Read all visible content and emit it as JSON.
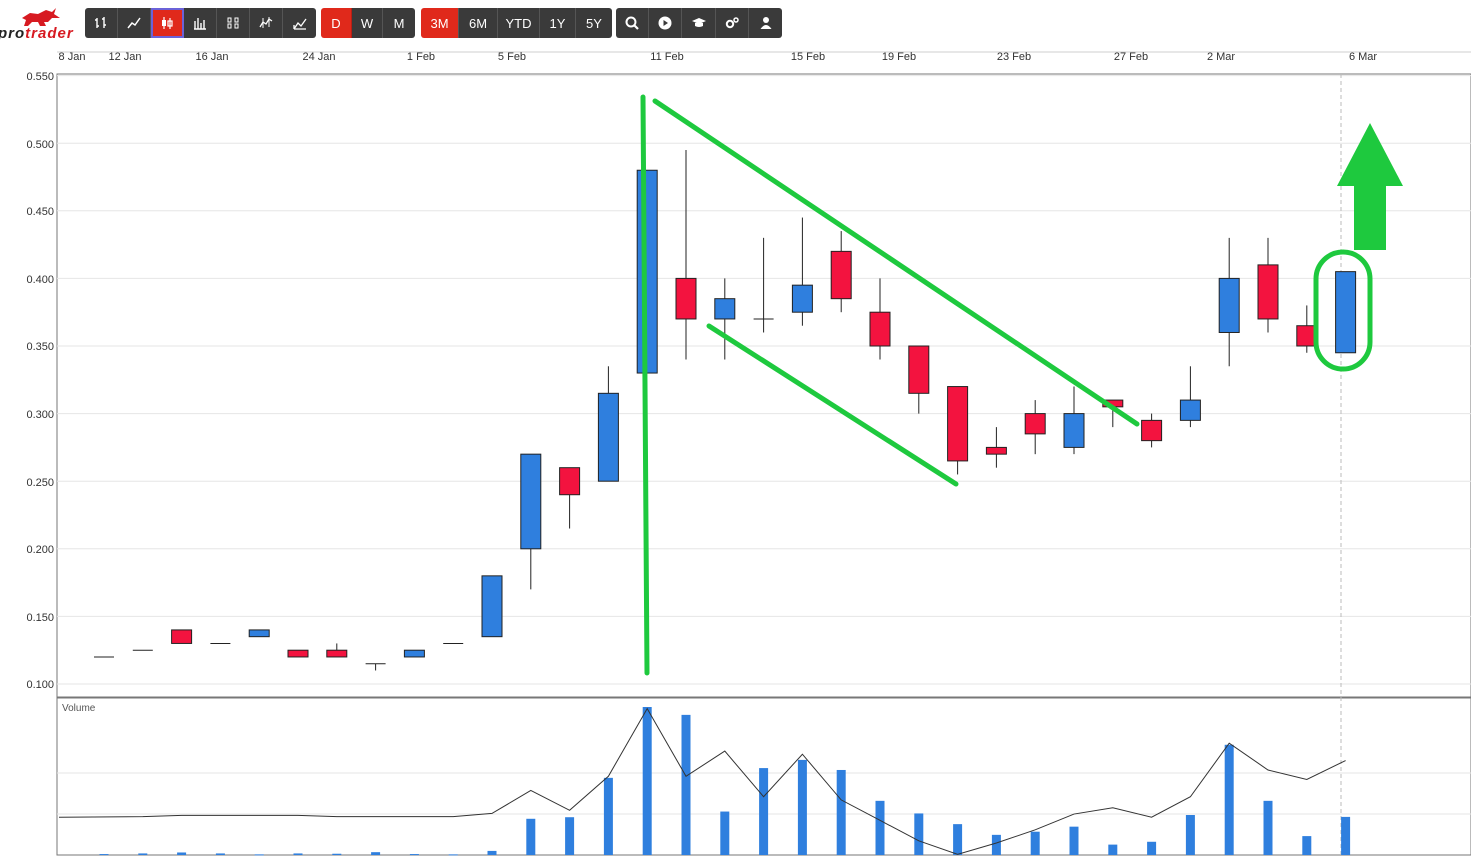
{
  "brand": {
    "logo_text_prefix": "pro",
    "logo_text_accent": "trader",
    "logo_icon": "bull-icon"
  },
  "toolbar": {
    "chart_types": [
      {
        "name": "ohlc-icon",
        "active": false
      },
      {
        "name": "line-chart-icon",
        "active": false
      },
      {
        "name": "candlestick-icon",
        "active": true
      },
      {
        "name": "bar-chart-icon",
        "active": false
      },
      {
        "name": "heikin-ashi-icon",
        "active": false
      },
      {
        "name": "step-line-icon",
        "active": false
      },
      {
        "name": "mountain-chart-icon",
        "active": false
      }
    ],
    "intervals": [
      "D",
      "W",
      "M"
    ],
    "ranges": [
      "3M",
      "6M",
      "YTD",
      "1Y",
      "5Y"
    ],
    "tools": [
      "search-icon",
      "play-icon",
      "graduation-cap-icon",
      "settings-icon",
      "user-icon"
    ]
  },
  "colors": {
    "up": "#2f7fde",
    "down": "#f3133f",
    "annotation": "#1ec93e",
    "toolbar_dark": "#3a3a3a",
    "toolbar_red": "#e0291b"
  },
  "chart_data": {
    "type": "candlestick",
    "x_tick_labels": [
      "8 Jan",
      "12 Jan",
      "16 Jan",
      "24 Jan",
      "1 Feb",
      "5 Feb",
      "11 Feb",
      "15 Feb",
      "19 Feb",
      "23 Feb",
      "27 Feb",
      "2 Mar",
      "6 Mar"
    ],
    "y_ticks": [
      "0.550",
      "0.500",
      "0.450",
      "0.400",
      "0.350",
      "0.300",
      "0.250",
      "0.200",
      "0.150",
      "0.100"
    ],
    "ylim": [
      0.09,
      0.555
    ],
    "volume_label": "Volume",
    "grid": true,
    "candles": [
      {
        "o": 0.12,
        "h": 0.12,
        "l": 0.12,
        "c": 0.12,
        "v": 0.3
      },
      {
        "o": 0.125,
        "h": 0.125,
        "l": 0.125,
        "c": 0.125,
        "v": 0.5
      },
      {
        "o": 0.14,
        "h": 0.14,
        "l": 0.13,
        "c": 0.13,
        "v": 0.8
      },
      {
        "o": 0.13,
        "h": 0.13,
        "l": 0.13,
        "c": 0.13,
        "v": 0.5
      },
      {
        "o": 0.135,
        "h": 0.14,
        "l": 0.135,
        "c": 0.14,
        "v": 0.2
      },
      {
        "o": 0.125,
        "h": 0.125,
        "l": 0.12,
        "c": 0.12,
        "v": 0.5
      },
      {
        "o": 0.125,
        "h": 0.13,
        "l": 0.12,
        "c": 0.12,
        "v": 0.4
      },
      {
        "o": 0.115,
        "h": 0.115,
        "l": 0.11,
        "c": 0.115,
        "v": 0.9
      },
      {
        "o": 0.12,
        "h": 0.125,
        "l": 0.12,
        "c": 0.125,
        "v": 0.3
      },
      {
        "o": 0.13,
        "h": 0.13,
        "l": 0.13,
        "c": 0.13,
        "v": 0.2
      },
      {
        "o": 0.135,
        "h": 0.18,
        "l": 0.135,
        "c": 0.18,
        "v": 1.3
      },
      {
        "o": 0.2,
        "h": 0.27,
        "l": 0.17,
        "c": 0.27,
        "v": 11.5
      },
      {
        "o": 0.26,
        "h": 0.26,
        "l": 0.215,
        "c": 0.24,
        "v": 12.0
      },
      {
        "o": 0.25,
        "h": 0.335,
        "l": 0.25,
        "c": 0.315,
        "v": 24.5
      },
      {
        "o": 0.33,
        "h": 0.48,
        "l": 0.33,
        "c": 0.48,
        "v": 47.0
      },
      {
        "o": 0.4,
        "h": 0.495,
        "l": 0.34,
        "c": 0.37,
        "v": 44.5
      },
      {
        "o": 0.37,
        "h": 0.4,
        "l": 0.34,
        "c": 0.385,
        "v": 13.8
      },
      {
        "o": 0.37,
        "h": 0.43,
        "l": 0.36,
        "c": 0.37,
        "v": 27.6
      },
      {
        "o": 0.375,
        "h": 0.445,
        "l": 0.365,
        "c": 0.395,
        "v": 30.2
      },
      {
        "o": 0.42,
        "h": 0.435,
        "l": 0.375,
        "c": 0.385,
        "v": 27.0
      },
      {
        "o": 0.375,
        "h": 0.4,
        "l": 0.34,
        "c": 0.35,
        "v": 17.2
      },
      {
        "o": 0.35,
        "h": 0.35,
        "l": 0.3,
        "c": 0.315,
        "v": 13.2
      },
      {
        "o": 0.32,
        "h": 0.32,
        "l": 0.255,
        "c": 0.265,
        "v": 9.8
      },
      {
        "o": 0.275,
        "h": 0.29,
        "l": 0.26,
        "c": 0.27,
        "v": 6.4
      },
      {
        "o": 0.3,
        "h": 0.31,
        "l": 0.27,
        "c": 0.285,
        "v": 7.4
      },
      {
        "o": 0.275,
        "h": 0.32,
        "l": 0.27,
        "c": 0.3,
        "v": 9.0
      },
      {
        "o": 0.31,
        "h": 0.31,
        "l": 0.29,
        "c": 0.305,
        "v": 3.3
      },
      {
        "o": 0.295,
        "h": 0.3,
        "l": 0.275,
        "c": 0.28,
        "v": 4.2
      },
      {
        "o": 0.295,
        "h": 0.335,
        "l": 0.29,
        "c": 0.31,
        "v": 12.7
      },
      {
        "o": 0.36,
        "h": 0.43,
        "l": 0.335,
        "c": 0.4,
        "v": 35.0
      },
      {
        "o": 0.41,
        "h": 0.43,
        "l": 0.36,
        "c": 0.37,
        "v": 17.2
      },
      {
        "o": 0.365,
        "h": 0.38,
        "l": 0.345,
        "c": 0.35,
        "v": 6.0
      },
      {
        "o": 0.345,
        "h": 0.405,
        "l": 0.345,
        "c": 0.405,
        "v": 12.1
      }
    ],
    "volume_avg": [
      12,
      12.2,
      12.6,
      12.6,
      12.6,
      12.6,
      12.2,
      12.2,
      12.2,
      12.2,
      13.2,
      20.5,
      14.2,
      25.0,
      46.5,
      25.0,
      33.0,
      18.5,
      32.0,
      17.5,
      11.0,
      4.5,
      0.2,
      3.8,
      8.0,
      13.0,
      15.0,
      12.0,
      18.5,
      35.5,
      27.0,
      24.0,
      30.0
    ]
  }
}
